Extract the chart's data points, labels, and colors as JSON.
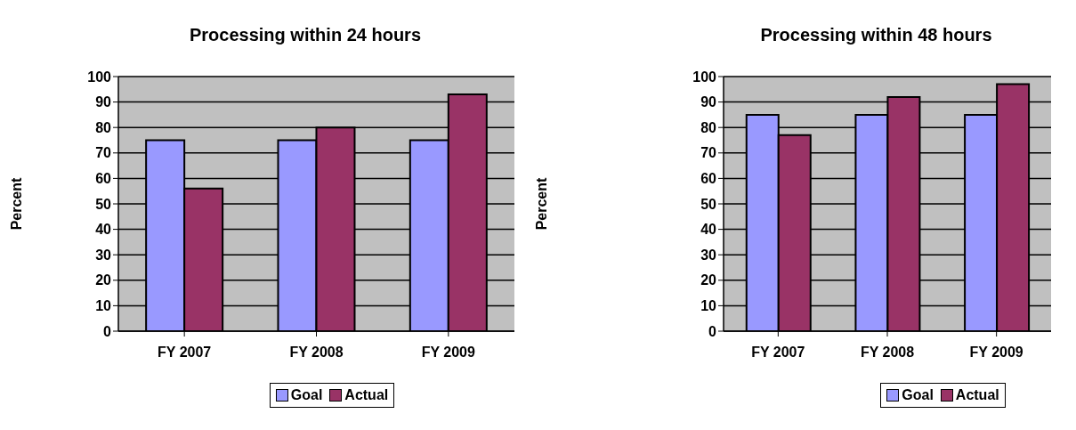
{
  "chart_data": [
    {
      "type": "bar",
      "title": "Processing within 24 hours",
      "ylabel": "Percent",
      "categories": [
        "FY 2007",
        "FY 2008",
        "FY 2009"
      ],
      "series": [
        {
          "name": "Goal",
          "color": "#9999ff",
          "values": [
            75,
            75,
            75
          ]
        },
        {
          "name": "Actual",
          "color": "#993366",
          "values": [
            56,
            80,
            93
          ]
        }
      ],
      "ylim": [
        0,
        100
      ],
      "yticks": [
        0,
        10,
        20,
        30,
        40,
        50,
        60,
        70,
        80,
        90,
        100
      ],
      "grid": "y",
      "legend": "bottom"
    },
    {
      "type": "bar",
      "title": "Processing within 48 hours",
      "ylabel": "Percent",
      "categories": [
        "FY 2007",
        "FY 2008",
        "FY 2009"
      ],
      "series": [
        {
          "name": "Goal",
          "color": "#9999ff",
          "values": [
            85,
            85,
            85
          ]
        },
        {
          "name": "Actual",
          "color": "#993366",
          "values": [
            77,
            92,
            97
          ]
        }
      ],
      "ylim": [
        0,
        100
      ],
      "yticks": [
        0,
        10,
        20,
        30,
        40,
        50,
        60,
        70,
        80,
        90,
        100
      ],
      "grid": "y",
      "legend": "bottom"
    }
  ]
}
